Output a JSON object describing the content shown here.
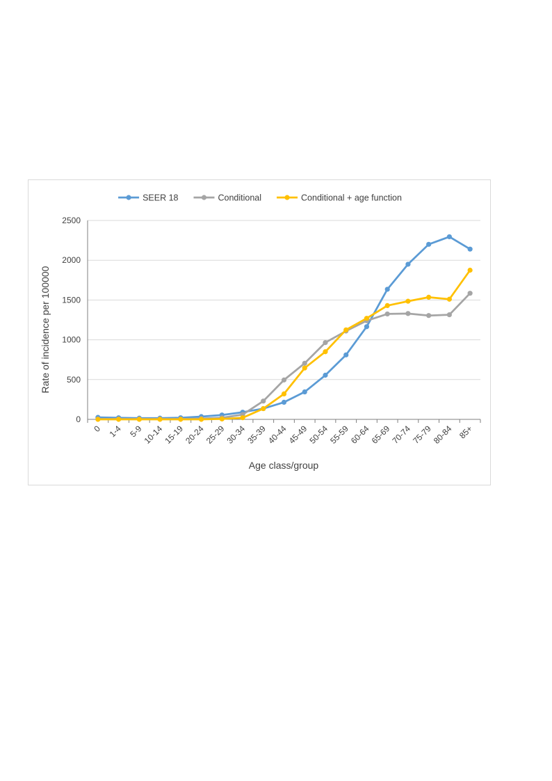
{
  "chart_data": {
    "type": "line",
    "title": "",
    "xlabel": "Age class/group",
    "ylabel": "Rate of incidence per 100000",
    "ylim": [
      0,
      2500
    ],
    "yticks": [
      0,
      500,
      1000,
      1500,
      2000,
      2500
    ],
    "grid": "horizontal",
    "legend_position": "top",
    "categories": [
      "0",
      "1-4",
      "5-9",
      "10-14",
      "15-19",
      "20-24",
      "25-29",
      "30-34",
      "35-39",
      "40-44",
      "45-49",
      "50-54",
      "55-59",
      "60-64",
      "65-69",
      "70-74",
      "75-79",
      "80-84",
      "85+"
    ],
    "series": [
      {
        "name": "SEER 18",
        "color": "#5b9bd5",
        "values": [
          25,
          20,
          15,
          15,
          20,
          35,
          55,
          90,
          135,
          215,
          345,
          555,
          810,
          1165,
          1635,
          1950,
          2200,
          2295,
          2140
        ]
      },
      {
        "name": "Conditional",
        "color": "#a5a5a5",
        "values": [
          5,
          5,
          5,
          5,
          5,
          10,
          20,
          60,
          230,
          495,
          705,
          965,
          1110,
          1240,
          1325,
          1330,
          1305,
          1315,
          1585
        ]
      },
      {
        "name": "Conditional + age function",
        "color": "#ffc000",
        "values": [
          0,
          0,
          0,
          0,
          0,
          0,
          5,
          20,
          135,
          320,
          645,
          850,
          1125,
          1270,
          1430,
          1485,
          1535,
          1510,
          1875
        ]
      }
    ]
  }
}
